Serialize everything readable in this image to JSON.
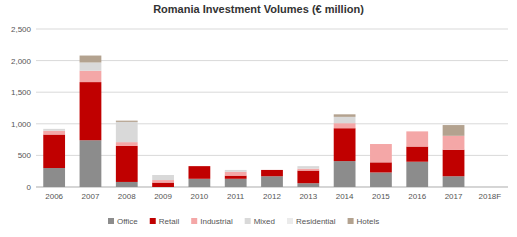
{
  "chart_data": {
    "type": "bar",
    "title": "Romania Investment Volumes (€ million)",
    "categories": [
      "2006",
      "2007",
      "2008",
      "2009",
      "2010",
      "2011",
      "2012",
      "2013",
      "2014",
      "2015",
      "2016",
      "2017",
      "2018F"
    ],
    "stacked": true,
    "grid": true,
    "legend": "bottom",
    "ylim": [
      0,
      2500
    ],
    "yticks": [
      0,
      500,
      {
        "value": 1000,
        "label": "1,000"
      },
      {
        "value": 1500,
        "label": "1,500"
      },
      {
        "value": 2000,
        "label": "2,000"
      },
      {
        "value": 2500,
        "label": "2,500"
      }
    ],
    "series": [
      {
        "name": "Office",
        "color": "#8c8c8c",
        "values": [
          300,
          740,
          80,
          0,
          130,
          130,
          170,
          60,
          410,
          230,
          400,
          170,
          null
        ]
      },
      {
        "name": "Retail",
        "color": "#c00000",
        "values": [
          530,
          920,
          570,
          70,
          200,
          50,
          100,
          200,
          520,
          160,
          240,
          420,
          null
        ]
      },
      {
        "name": "Industrial",
        "color": "#f4a7a7",
        "values": [
          60,
          180,
          60,
          40,
          0,
          60,
          0,
          30,
          80,
          290,
          240,
          220,
          null
        ]
      },
      {
        "name": "Mixed",
        "color": "#d9d9d9",
        "values": [
          30,
          130,
          320,
          80,
          0,
          30,
          0,
          40,
          100,
          0,
          0,
          0,
          null
        ]
      },
      {
        "name": "Residential",
        "color": "#ebebeb",
        "values": [
          0,
          0,
          0,
          0,
          0,
          0,
          0,
          0,
          0,
          0,
          0,
          0,
          null
        ]
      },
      {
        "name": "Hotels",
        "color": "#b3a28f",
        "values": [
          0,
          110,
          20,
          0,
          0,
          0,
          0,
          0,
          40,
          0,
          0,
          170,
          null
        ]
      }
    ]
  }
}
